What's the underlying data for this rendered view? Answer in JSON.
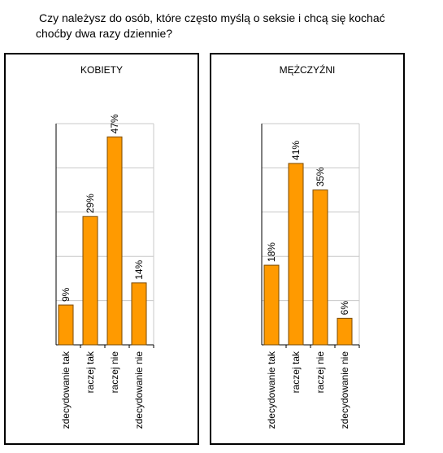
{
  "question": {
    "line1": "Czy należysz do osób, które często myślą o seksie i chcą się kochać",
    "line2": "choćby dwa razy dziennie?"
  },
  "colors": {
    "bar": "#ff9a00",
    "bar_stroke": "#7a4a00",
    "grid": "#c8c8c8",
    "axis": "#000000"
  },
  "chart_data": [
    {
      "type": "bar",
      "title": "KOBIETY",
      "categories": [
        "zdecydowanie tak",
        "raczej tak",
        "raczej nie",
        "zdecydowanie nie"
      ],
      "values": [
        9,
        29,
        47,
        14
      ],
      "value_labels": [
        "9%",
        "29%",
        "47%",
        "14%"
      ],
      "unit": "%",
      "ylim": [
        0,
        50
      ],
      "grid": true
    },
    {
      "type": "bar",
      "title": "MĘŻCZYŹNI",
      "categories": [
        "zdecydowanie tak",
        "raczej tak",
        "raczej nie",
        "zdecydowanie nie"
      ],
      "values": [
        18,
        41,
        35,
        6
      ],
      "value_labels": [
        "18%",
        "41%",
        "35%",
        "6%"
      ],
      "unit": "%",
      "ylim": [
        0,
        50
      ],
      "grid": true
    }
  ]
}
